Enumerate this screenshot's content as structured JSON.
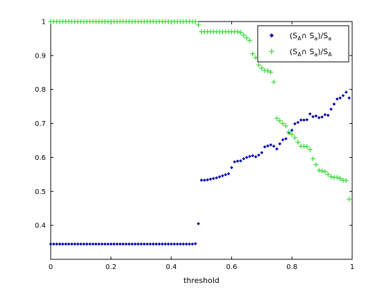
{
  "chart_data": {
    "type": "scatter",
    "title": "",
    "xlabel": "threshold",
    "ylabel": "",
    "xlim": [
      0,
      1
    ],
    "ylim": [
      0.3,
      1
    ],
    "xticks": [
      "0",
      "0.2",
      "0.4",
      "0.6",
      "0.8",
      "1"
    ],
    "yticks": [
      "0.4",
      "0.5",
      "0.6",
      "0.7",
      "0.8",
      "0.9",
      "1"
    ],
    "grid": false,
    "legend_position": "top-right",
    "series": [
      {
        "name": "(S_A ∩ S_a)/S_a",
        "label_main1": "(S",
        "label_sub1": "A",
        "label_main2": "∩ S",
        "label_sub2": "a",
        "label_main3": ")/S",
        "label_sub3": "a",
        "marker": "diamond",
        "color": "#0000b4",
        "points": [
          [
            0.0,
            0.345
          ],
          [
            0.01,
            0.345
          ],
          [
            0.02,
            0.345
          ],
          [
            0.03,
            0.345
          ],
          [
            0.04,
            0.345
          ],
          [
            0.05,
            0.345
          ],
          [
            0.06,
            0.345
          ],
          [
            0.07,
            0.345
          ],
          [
            0.08,
            0.345
          ],
          [
            0.09,
            0.345
          ],
          [
            0.1,
            0.345
          ],
          [
            0.11,
            0.345
          ],
          [
            0.12,
            0.345
          ],
          [
            0.13,
            0.345
          ],
          [
            0.14,
            0.345
          ],
          [
            0.15,
            0.345
          ],
          [
            0.16,
            0.345
          ],
          [
            0.17,
            0.345
          ],
          [
            0.18,
            0.345
          ],
          [
            0.19,
            0.345
          ],
          [
            0.2,
            0.345
          ],
          [
            0.21,
            0.345
          ],
          [
            0.22,
            0.345
          ],
          [
            0.23,
            0.345
          ],
          [
            0.24,
            0.345
          ],
          [
            0.25,
            0.345
          ],
          [
            0.26,
            0.345
          ],
          [
            0.27,
            0.345
          ],
          [
            0.28,
            0.345
          ],
          [
            0.29,
            0.345
          ],
          [
            0.3,
            0.345
          ],
          [
            0.31,
            0.345
          ],
          [
            0.32,
            0.345
          ],
          [
            0.33,
            0.345
          ],
          [
            0.34,
            0.345
          ],
          [
            0.35,
            0.345
          ],
          [
            0.36,
            0.345
          ],
          [
            0.37,
            0.345
          ],
          [
            0.38,
            0.345
          ],
          [
            0.39,
            0.345
          ],
          [
            0.4,
            0.345
          ],
          [
            0.41,
            0.345
          ],
          [
            0.42,
            0.345
          ],
          [
            0.43,
            0.345
          ],
          [
            0.44,
            0.345
          ],
          [
            0.45,
            0.345
          ],
          [
            0.46,
            0.345
          ],
          [
            0.47,
            0.345
          ],
          [
            0.48,
            0.346
          ],
          [
            0.49,
            0.405
          ],
          [
            0.5,
            0.533
          ],
          [
            0.51,
            0.533
          ],
          [
            0.52,
            0.534
          ],
          [
            0.53,
            0.536
          ],
          [
            0.54,
            0.538
          ],
          [
            0.55,
            0.54
          ],
          [
            0.56,
            0.543
          ],
          [
            0.57,
            0.546
          ],
          [
            0.58,
            0.549
          ],
          [
            0.59,
            0.552
          ],
          [
            0.6,
            0.57
          ],
          [
            0.61,
            0.587
          ],
          [
            0.62,
            0.589
          ],
          [
            0.63,
            0.59
          ],
          [
            0.64,
            0.596
          ],
          [
            0.65,
            0.6
          ],
          [
            0.66,
            0.603
          ],
          [
            0.67,
            0.605
          ],
          [
            0.68,
            0.602
          ],
          [
            0.69,
            0.607
          ],
          [
            0.7,
            0.614
          ],
          [
            0.71,
            0.631
          ],
          [
            0.72,
            0.634
          ],
          [
            0.73,
            0.637
          ],
          [
            0.74,
            0.633
          ],
          [
            0.75,
            0.625
          ],
          [
            0.76,
            0.64
          ],
          [
            0.77,
            0.652
          ],
          [
            0.78,
            0.655
          ],
          [
            0.79,
            0.672
          ],
          [
            0.8,
            0.68
          ],
          [
            0.81,
            0.699
          ],
          [
            0.82,
            0.703
          ],
          [
            0.83,
            0.71
          ],
          [
            0.84,
            0.71
          ],
          [
            0.85,
            0.711
          ],
          [
            0.86,
            0.728
          ],
          [
            0.87,
            0.72
          ],
          [
            0.88,
            0.722
          ],
          [
            0.89,
            0.717
          ],
          [
            0.9,
            0.719
          ],
          [
            0.91,
            0.726
          ],
          [
            0.92,
            0.724
          ],
          [
            0.93,
            0.742
          ],
          [
            0.94,
            0.757
          ],
          [
            0.95,
            0.772
          ],
          [
            0.96,
            0.775
          ],
          [
            0.97,
            0.782
          ],
          [
            0.98,
            0.792
          ],
          [
            0.99,
            0.775
          ]
        ]
      },
      {
        "name": "(S_A ∩ S_a)/S_A",
        "label_main1": "(S",
        "label_sub1": "A",
        "label_main2": "∩ S",
        "label_sub2": "a",
        "label_main3": ")/S",
        "label_sub3": "A",
        "marker": "plus",
        "color": "#3ddc3d",
        "points": [
          [
            0.0,
            1
          ],
          [
            0.01,
            1
          ],
          [
            0.02,
            1
          ],
          [
            0.03,
            1
          ],
          [
            0.04,
            1
          ],
          [
            0.05,
            1
          ],
          [
            0.06,
            1
          ],
          [
            0.07,
            1
          ],
          [
            0.08,
            1
          ],
          [
            0.09,
            1
          ],
          [
            0.1,
            1
          ],
          [
            0.11,
            1
          ],
          [
            0.12,
            1
          ],
          [
            0.13,
            1
          ],
          [
            0.14,
            1
          ],
          [
            0.15,
            1
          ],
          [
            0.16,
            1
          ],
          [
            0.17,
            1
          ],
          [
            0.18,
            1
          ],
          [
            0.19,
            1
          ],
          [
            0.2,
            1
          ],
          [
            0.21,
            1
          ],
          [
            0.22,
            1
          ],
          [
            0.23,
            1
          ],
          [
            0.24,
            1
          ],
          [
            0.25,
            1
          ],
          [
            0.26,
            1
          ],
          [
            0.27,
            1
          ],
          [
            0.28,
            1
          ],
          [
            0.29,
            1
          ],
          [
            0.3,
            1
          ],
          [
            0.31,
            1
          ],
          [
            0.32,
            1
          ],
          [
            0.33,
            1
          ],
          [
            0.34,
            1
          ],
          [
            0.35,
            1
          ],
          [
            0.36,
            1
          ],
          [
            0.37,
            1
          ],
          [
            0.38,
            1
          ],
          [
            0.39,
            1
          ],
          [
            0.4,
            1
          ],
          [
            0.41,
            1
          ],
          [
            0.42,
            1
          ],
          [
            0.43,
            1
          ],
          [
            0.44,
            1
          ],
          [
            0.45,
            1
          ],
          [
            0.46,
            1
          ],
          [
            0.47,
            1
          ],
          [
            0.48,
            1
          ],
          [
            0.49,
            0.99
          ],
          [
            0.5,
            0.97
          ],
          [
            0.51,
            0.97
          ],
          [
            0.52,
            0.97
          ],
          [
            0.53,
            0.97
          ],
          [
            0.54,
            0.97
          ],
          [
            0.55,
            0.97
          ],
          [
            0.56,
            0.97
          ],
          [
            0.57,
            0.97
          ],
          [
            0.58,
            0.97
          ],
          [
            0.59,
            0.97
          ],
          [
            0.6,
            0.97
          ],
          [
            0.61,
            0.97
          ],
          [
            0.62,
            0.97
          ],
          [
            0.63,
            0.968
          ],
          [
            0.64,
            0.96
          ],
          [
            0.65,
            0.952
          ],
          [
            0.66,
            0.944
          ],
          [
            0.67,
            0.905
          ],
          [
            0.68,
            0.894
          ],
          [
            0.69,
            0.872
          ],
          [
            0.7,
            0.863
          ],
          [
            0.71,
            0.856
          ],
          [
            0.72,
            0.855
          ],
          [
            0.73,
            0.851
          ],
          [
            0.74,
            0.822
          ],
          [
            0.75,
            0.715
          ],
          [
            0.76,
            0.708
          ],
          [
            0.77,
            0.7
          ],
          [
            0.78,
            0.693
          ],
          [
            0.79,
            0.675
          ],
          [
            0.8,
            0.668
          ],
          [
            0.81,
            0.658
          ],
          [
            0.82,
            0.645
          ],
          [
            0.83,
            0.633
          ],
          [
            0.84,
            0.633
          ],
          [
            0.85,
            0.632
          ],
          [
            0.86,
            0.623
          ],
          [
            0.87,
            0.596
          ],
          [
            0.88,
            0.579
          ],
          [
            0.89,
            0.562
          ],
          [
            0.9,
            0.56
          ],
          [
            0.91,
            0.558
          ],
          [
            0.92,
            0.55
          ],
          [
            0.93,
            0.543
          ],
          [
            0.94,
            0.541
          ],
          [
            0.95,
            0.541
          ],
          [
            0.96,
            0.538
          ],
          [
            0.97,
            0.533
          ],
          [
            0.98,
            0.532
          ],
          [
            0.99,
            0.477
          ]
        ]
      }
    ]
  }
}
